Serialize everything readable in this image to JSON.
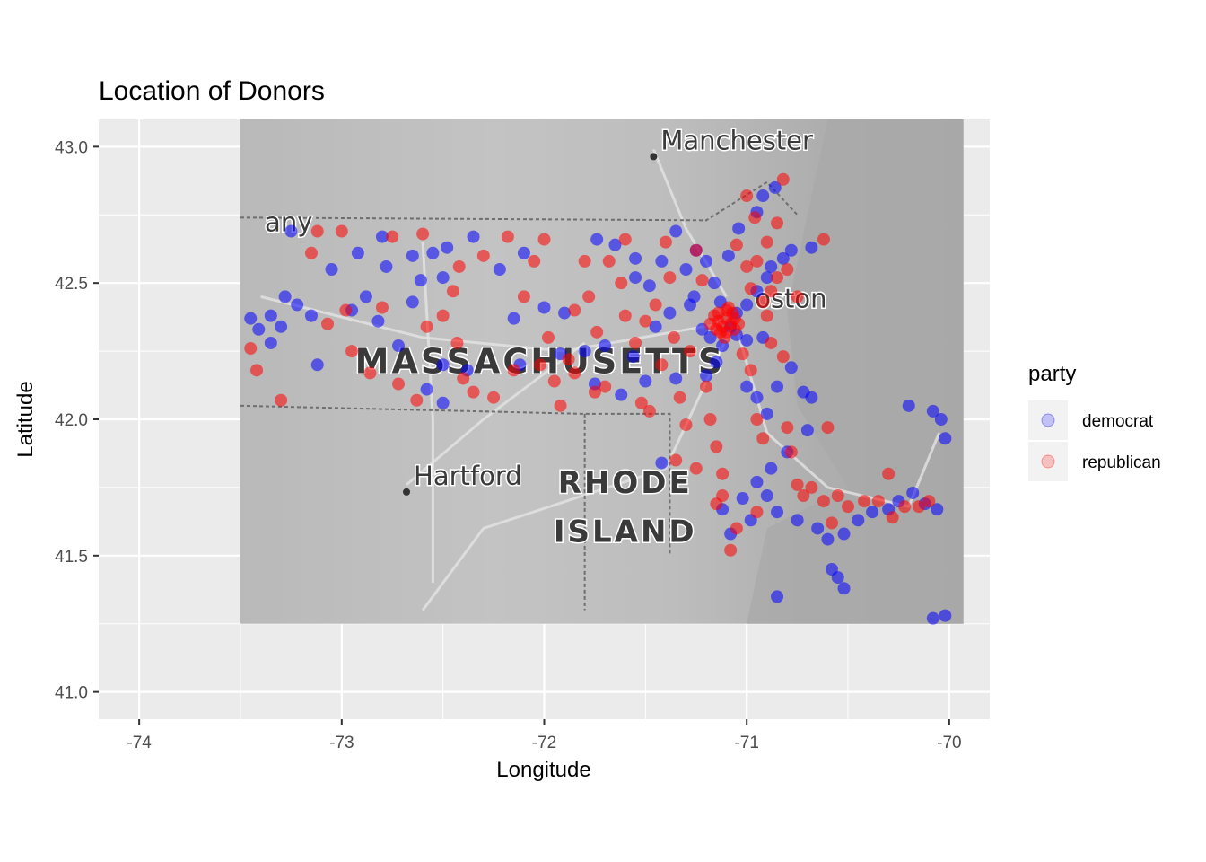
{
  "chart_data": {
    "type": "scatter",
    "title": "Location of Donors",
    "xlabel": "Longitude",
    "ylabel": "Latitude",
    "xlim": [
      -74.2,
      -69.8
    ],
    "ylim": [
      40.9,
      43.1
    ],
    "x_ticks": [
      -74,
      -73,
      -72,
      -71,
      -70
    ],
    "y_ticks": [
      41.0,
      41.5,
      42.0,
      42.5,
      43.0
    ],
    "x_tick_labels": [
      "-74",
      "-73",
      "-72",
      "-71",
      "-70"
    ],
    "y_tick_labels": [
      "41.0",
      "41.5",
      "42.0",
      "42.5",
      "43.0"
    ],
    "grid": true,
    "background": "#ebebeb",
    "basemap": {
      "lon_range": [
        -73.5,
        -69.93
      ],
      "lat_range": [
        41.25,
        43.1
      ],
      "tone": "grayscale terrain",
      "labels": [
        {
          "text": "Manchester",
          "lon": -71.46,
          "lat": 42.99,
          "point": true
        },
        {
          "text": "any",
          "lon": -73.38,
          "lat": 42.69,
          "point": false
        },
        {
          "text": "oston",
          "lon": -70.96,
          "lat": 42.41,
          "point": false
        },
        {
          "text": "MASSACHUSETTS",
          "lon": -72.02,
          "lat": 42.17,
          "point": false
        },
        {
          "text": "Hartford",
          "lon": -72.68,
          "lat": 41.76,
          "point": true
        },
        {
          "text": "RHODE",
          "lon": -71.6,
          "lat": 41.73,
          "point": false
        },
        {
          "text": "ISLAND",
          "lon": -71.6,
          "lat": 41.55,
          "point": false
        }
      ]
    },
    "legend": {
      "title": "party",
      "position": "right",
      "entries": [
        {
          "label": "democrat",
          "color": "#0000ff"
        },
        {
          "label": "republican",
          "color": "#ff0000"
        }
      ]
    },
    "marker_alpha": 0.2,
    "series": [
      {
        "name": "democrat",
        "color": "#0000ff",
        "points": [
          [
            -73.45,
            42.37
          ],
          [
            -73.41,
            42.33
          ],
          [
            -73.35,
            42.28
          ],
          [
            -73.28,
            42.45
          ],
          [
            -73.22,
            42.42
          ],
          [
            -73.15,
            42.38
          ],
          [
            -73.25,
            42.69
          ],
          [
            -73.05,
            42.55
          ],
          [
            -72.92,
            42.61
          ],
          [
            -72.8,
            42.67
          ],
          [
            -72.65,
            42.6
          ],
          [
            -72.55,
            42.61
          ],
          [
            -72.48,
            42.63
          ],
          [
            -72.5,
            42.52
          ],
          [
            -72.61,
            42.51
          ],
          [
            -72.78,
            42.56
          ],
          [
            -72.88,
            42.45
          ],
          [
            -72.95,
            42.4
          ],
          [
            -73.12,
            42.2
          ],
          [
            -73.3,
            42.34
          ],
          [
            -72.35,
            42.67
          ],
          [
            -72.22,
            42.55
          ],
          [
            -72.1,
            42.61
          ],
          [
            -72.0,
            42.41
          ],
          [
            -71.9,
            42.39
          ],
          [
            -71.74,
            42.66
          ],
          [
            -71.65,
            42.64
          ],
          [
            -71.55,
            42.52
          ],
          [
            -71.48,
            42.49
          ],
          [
            -71.35,
            42.69
          ],
          [
            -71.3,
            42.55
          ],
          [
            -71.26,
            42.45
          ],
          [
            -71.22,
            42.33
          ],
          [
            -71.18,
            42.3
          ],
          [
            -71.12,
            42.27
          ],
          [
            -71.08,
            42.34
          ],
          [
            -71.05,
            42.39
          ],
          [
            -71.0,
            42.42
          ],
          [
            -70.95,
            42.47
          ],
          [
            -70.9,
            42.52
          ],
          [
            -70.88,
            42.56
          ],
          [
            -70.82,
            42.59
          ],
          [
            -70.78,
            42.62
          ],
          [
            -70.68,
            42.63
          ],
          [
            -70.95,
            42.76
          ],
          [
            -70.92,
            42.82
          ],
          [
            -70.86,
            42.85
          ],
          [
            -71.04,
            42.7
          ],
          [
            -71.09,
            42.6
          ],
          [
            -71.15,
            42.21
          ],
          [
            -71.2,
            42.16
          ],
          [
            -71.35,
            42.15
          ],
          [
            -71.5,
            42.14
          ],
          [
            -71.62,
            42.09
          ],
          [
            -71.75,
            42.13
          ],
          [
            -72.5,
            42.06
          ],
          [
            -72.58,
            42.11
          ],
          [
            -72.72,
            42.27
          ],
          [
            -72.38,
            42.18
          ],
          [
            -72.12,
            42.2
          ],
          [
            -71.92,
            42.24
          ],
          [
            -71.8,
            42.25
          ],
          [
            -71.7,
            42.27
          ],
          [
            -71.56,
            42.23
          ],
          [
            -71.45,
            42.34
          ],
          [
            -71.38,
            42.39
          ],
          [
            -71.0,
            42.12
          ],
          [
            -70.95,
            42.08
          ],
          [
            -70.9,
            42.02
          ],
          [
            -70.85,
            42.12
          ],
          [
            -70.78,
            42.19
          ],
          [
            -70.72,
            42.1
          ],
          [
            -70.68,
            42.08
          ],
          [
            -70.7,
            41.96
          ],
          [
            -70.8,
            41.88
          ],
          [
            -70.88,
            41.82
          ],
          [
            -70.95,
            41.77
          ],
          [
            -71.02,
            41.71
          ],
          [
            -71.12,
            41.67
          ],
          [
            -71.08,
            41.58
          ],
          [
            -70.98,
            41.63
          ],
          [
            -70.9,
            41.72
          ],
          [
            -70.85,
            41.66
          ],
          [
            -70.75,
            41.63
          ],
          [
            -70.65,
            41.6
          ],
          [
            -70.6,
            41.56
          ],
          [
            -70.52,
            41.58
          ],
          [
            -70.45,
            41.63
          ],
          [
            -70.38,
            41.66
          ],
          [
            -70.3,
            41.67
          ],
          [
            -70.25,
            41.7
          ],
          [
            -70.18,
            41.73
          ],
          [
            -70.12,
            41.69
          ],
          [
            -70.06,
            41.67
          ],
          [
            -70.2,
            42.05
          ],
          [
            -70.08,
            42.03
          ],
          [
            -70.04,
            42.0
          ],
          [
            -70.02,
            41.93
          ],
          [
            -70.08,
            41.27
          ],
          [
            -70.02,
            41.28
          ],
          [
            -70.85,
            41.35
          ],
          [
            -70.52,
            41.38
          ],
          [
            -70.58,
            41.45
          ],
          [
            -70.55,
            41.42
          ],
          [
            -71.42,
            41.84
          ],
          [
            -71.42,
            42.58
          ],
          [
            -71.55,
            42.59
          ],
          [
            -72.15,
            42.37
          ],
          [
            -72.5,
            42.2
          ],
          [
            -73.35,
            42.38
          ],
          [
            -72.82,
            42.36
          ],
          [
            -72.65,
            42.43
          ],
          [
            -71.28,
            42.42
          ],
          [
            -71.05,
            42.31
          ],
          [
            -71.0,
            42.29
          ],
          [
            -70.92,
            42.3
          ],
          [
            -71.13,
            42.43
          ],
          [
            -71.16,
            42.5
          ],
          [
            -71.2,
            42.58
          ],
          [
            -71.25,
            42.62
          ]
        ]
      },
      {
        "name": "republican",
        "color": "#ff0000",
        "points": [
          [
            -73.45,
            42.26
          ],
          [
            -73.42,
            42.18
          ],
          [
            -73.3,
            42.07
          ],
          [
            -73.12,
            42.69
          ],
          [
            -73.15,
            42.61
          ],
          [
            -73.07,
            42.35
          ],
          [
            -72.98,
            42.4
          ],
          [
            -72.86,
            42.17
          ],
          [
            -72.8,
            42.41
          ],
          [
            -72.72,
            42.13
          ],
          [
            -72.63,
            42.07
          ],
          [
            -72.58,
            42.34
          ],
          [
            -72.5,
            42.38
          ],
          [
            -72.43,
            42.28
          ],
          [
            -72.4,
            42.15
          ],
          [
            -72.35,
            42.1
          ],
          [
            -72.45,
            42.47
          ],
          [
            -72.42,
            42.56
          ],
          [
            -72.3,
            42.6
          ],
          [
            -72.18,
            42.67
          ],
          [
            -72.1,
            42.45
          ],
          [
            -72.05,
            42.58
          ],
          [
            -72.02,
            42.2
          ],
          [
            -71.98,
            42.3
          ],
          [
            -71.95,
            42.14
          ],
          [
            -71.92,
            42.05
          ],
          [
            -71.88,
            42.22
          ],
          [
            -71.85,
            42.4
          ],
          [
            -71.8,
            42.58
          ],
          [
            -71.78,
            42.45
          ],
          [
            -71.74,
            42.32
          ],
          [
            -71.7,
            42.12
          ],
          [
            -71.68,
            42.58
          ],
          [
            -71.62,
            42.5
          ],
          [
            -71.6,
            42.38
          ],
          [
            -71.55,
            42.28
          ],
          [
            -71.52,
            42.06
          ],
          [
            -71.48,
            42.03
          ],
          [
            -71.45,
            42.42
          ],
          [
            -71.42,
            42.2
          ],
          [
            -71.4,
            42.65
          ],
          [
            -71.38,
            42.52
          ],
          [
            -71.36,
            42.3
          ],
          [
            -71.33,
            42.08
          ],
          [
            -71.3,
            41.98
          ],
          [
            -71.28,
            42.25
          ],
          [
            -71.25,
            42.62
          ],
          [
            -71.22,
            42.51
          ],
          [
            -71.2,
            42.12
          ],
          [
            -71.18,
            42.0
          ],
          [
            -71.15,
            41.9
          ],
          [
            -71.12,
            41.8
          ],
          [
            -71.1,
            42.4
          ],
          [
            -71.14,
            42.36
          ],
          [
            -71.16,
            42.38
          ],
          [
            -71.08,
            42.35
          ],
          [
            -71.1,
            42.32
          ],
          [
            -71.06,
            42.37
          ],
          [
            -71.12,
            42.34
          ],
          [
            -71.14,
            42.39
          ],
          [
            -71.1,
            42.37
          ],
          [
            -71.06,
            42.33
          ],
          [
            -71.18,
            42.35
          ],
          [
            -71.04,
            42.35
          ],
          [
            -71.11,
            42.3
          ],
          [
            -71.09,
            42.41
          ],
          [
            -71.13,
            42.32
          ],
          [
            -71.15,
            42.33
          ],
          [
            -71.07,
            42.39
          ],
          [
            -71.02,
            42.24
          ],
          [
            -70.98,
            42.18
          ],
          [
            -70.95,
            42.0
          ],
          [
            -70.92,
            41.93
          ],
          [
            -70.9,
            42.38
          ],
          [
            -70.88,
            42.28
          ],
          [
            -70.85,
            42.52
          ],
          [
            -70.82,
            42.23
          ],
          [
            -70.8,
            41.97
          ],
          [
            -70.78,
            41.88
          ],
          [
            -70.75,
            41.76
          ],
          [
            -70.72,
            41.72
          ],
          [
            -70.68,
            41.75
          ],
          [
            -70.62,
            41.7
          ],
          [
            -70.58,
            41.62
          ],
          [
            -70.55,
            41.72
          ],
          [
            -70.5,
            41.68
          ],
          [
            -70.42,
            41.7
          ],
          [
            -70.35,
            41.7
          ],
          [
            -70.28,
            41.64
          ],
          [
            -70.22,
            41.68
          ],
          [
            -70.15,
            41.68
          ],
          [
            -70.1,
            41.7
          ],
          [
            -70.3,
            41.8
          ],
          [
            -70.6,
            41.97
          ],
          [
            -71.05,
            41.6
          ],
          [
            -71.08,
            41.52
          ],
          [
            -71.12,
            41.72
          ],
          [
            -71.15,
            41.69
          ],
          [
            -70.95,
            41.66
          ],
          [
            -71.35,
            41.85
          ],
          [
            -71.25,
            41.82
          ],
          [
            -71.5,
            42.36
          ],
          [
            -71.6,
            42.66
          ],
          [
            -72.0,
            42.66
          ],
          [
            -72.6,
            42.68
          ],
          [
            -72.75,
            42.67
          ],
          [
            -73.0,
            42.69
          ],
          [
            -72.95,
            42.25
          ],
          [
            -72.25,
            42.08
          ],
          [
            -72.15,
            42.18
          ],
          [
            -71.85,
            42.17
          ],
          [
            -71.75,
            42.1
          ],
          [
            -70.85,
            42.72
          ],
          [
            -70.9,
            42.65
          ],
          [
            -70.95,
            42.58
          ],
          [
            -70.88,
            42.47
          ],
          [
            -70.8,
            42.55
          ],
          [
            -70.75,
            42.45
          ],
          [
            -70.82,
            42.88
          ],
          [
            -70.62,
            42.66
          ],
          [
            -70.96,
            42.74
          ],
          [
            -71.0,
            42.82
          ],
          [
            -71.05,
            42.64
          ],
          [
            -71.0,
            42.56
          ],
          [
            -70.98,
            42.48
          ],
          [
            -70.92,
            42.43
          ]
        ]
      }
    ]
  }
}
